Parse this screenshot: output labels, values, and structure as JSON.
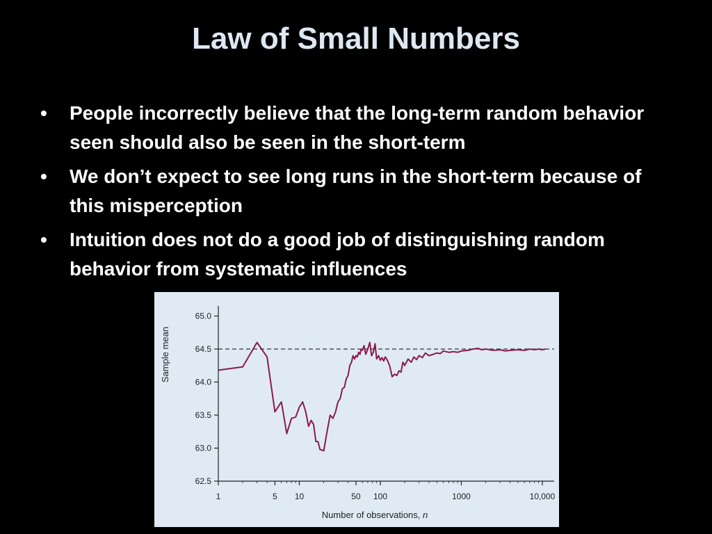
{
  "slide": {
    "title": "Law of Small Numbers",
    "bullet_symbol": "•",
    "bullets": [
      "People incorrectly believe that the long-term random behavior seen should also be seen in the short-term",
      "We don’t expect to see long runs in the short-term because of this misperception",
      "Intuition does not do a good job of distinguishing random behavior from systematic influences"
    ]
  },
  "chart_data": {
    "type": "line",
    "xlabel": "Number of observations, ",
    "xlabel_italic": "n",
    "ylabel": "Sample mean",
    "x_scale": "log",
    "xlim": [
      1,
      14000
    ],
    "ylim": [
      62.5,
      65.1
    ],
    "x_ticks": [
      1,
      5,
      10,
      50,
      100,
      1000,
      10000
    ],
    "x_tick_labels": [
      "1",
      "5",
      "10",
      "50",
      "100",
      "1000",
      "10,000"
    ],
    "y_ticks": [
      62.5,
      63.0,
      63.5,
      64.0,
      64.5,
      65.0
    ],
    "y_tick_labels": [
      "62.5",
      "63.0",
      "63.5",
      "64.0",
      "64.5",
      "65.0"
    ],
    "reference_line": {
      "y": 64.5,
      "style": "dashed"
    },
    "line_color": "#8b1a4a",
    "grid": false,
    "series": [
      {
        "x": [
          1,
          2,
          3,
          4,
          5,
          6,
          7,
          8,
          9,
          10,
          11,
          12,
          13,
          14,
          15,
          16,
          17,
          18,
          20,
          22,
          24,
          26,
          28,
          30,
          32,
          34,
          36,
          38,
          40,
          42,
          44,
          46,
          48,
          50,
          52,
          54,
          56,
          58,
          60,
          63,
          66,
          70,
          74,
          78,
          82,
          86,
          90,
          95,
          100,
          105,
          110,
          115,
          120,
          125,
          130,
          140,
          150,
          160,
          170,
          180,
          190,
          200,
          220,
          240,
          260,
          280,
          300,
          330,
          360,
          400,
          450,
          500,
          550,
          600,
          700,
          800,
          900,
          1000,
          1200,
          1400,
          1600,
          1800,
          2000,
          2500,
          3000,
          3500,
          4000,
          5000,
          6000,
          7000,
          8000,
          9000,
          10000,
          11000
        ],
        "y": [
          64.18,
          64.23,
          64.6,
          64.38,
          63.55,
          63.7,
          63.22,
          63.45,
          63.47,
          63.62,
          63.7,
          63.55,
          63.33,
          63.42,
          63.36,
          63.1,
          63.1,
          62.98,
          62.96,
          63.25,
          63.5,
          63.45,
          63.55,
          63.7,
          63.75,
          63.9,
          63.92,
          64.05,
          64.1,
          64.25,
          64.3,
          64.4,
          64.35,
          64.4,
          64.38,
          64.45,
          64.42,
          64.5,
          64.48,
          64.55,
          64.42,
          64.5,
          64.6,
          64.4,
          64.45,
          64.58,
          64.35,
          64.4,
          64.33,
          64.37,
          64.32,
          64.38,
          64.35,
          64.3,
          64.25,
          64.08,
          64.12,
          64.1,
          64.17,
          64.15,
          64.3,
          64.25,
          64.35,
          64.3,
          64.38,
          64.34,
          64.4,
          64.37,
          64.44,
          64.4,
          64.42,
          64.44,
          64.43,
          64.47,
          64.45,
          64.46,
          64.45,
          64.47,
          64.48,
          64.5,
          64.51,
          64.49,
          64.5,
          64.48,
          64.49,
          64.47,
          64.48,
          64.49,
          64.48,
          64.5,
          64.49,
          64.5,
          64.49,
          64.5
        ]
      }
    ]
  }
}
